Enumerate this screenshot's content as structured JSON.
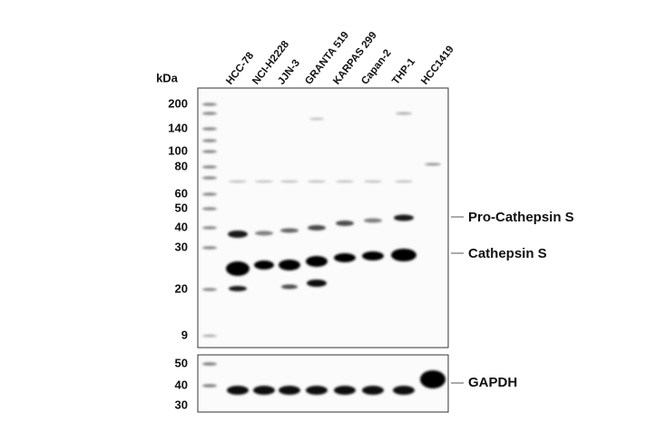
{
  "unit_label": "kDa",
  "lanes": [
    "HCC-78",
    "NCI-H2228",
    "JJN-3",
    "GRANTA 519",
    "KARPAS 299",
    "Capan-2",
    "THP-1",
    "HCC1419"
  ],
  "main_markers": [
    "200",
    "140",
    "100",
    "80",
    "60",
    "50",
    "40",
    "30",
    "20",
    "9"
  ],
  "gapdh_markers": [
    "50",
    "40",
    "30"
  ],
  "band_labels": [
    "Pro-Cathepsin S",
    "Cathepsin S",
    "GAPDH"
  ]
}
